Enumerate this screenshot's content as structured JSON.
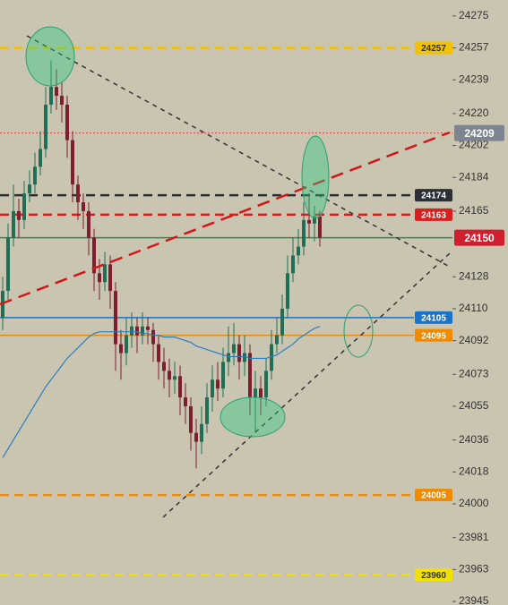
{
  "chart_data": {
    "type": "candlestick",
    "ylim": [
      23943,
      24284
    ],
    "yticks": [
      24275,
      24257,
      24239,
      24220,
      24202,
      24184,
      24165,
      24128,
      24110,
      24092,
      24073,
      24055,
      24036,
      24018,
      24000,
      23981,
      23963,
      23945
    ],
    "up_color": "#1f6e55",
    "down_color": "#7d1f2e",
    "open": [
      24105,
      24120,
      24150,
      24165,
      24160,
      24175,
      24180,
      24190,
      24200,
      24225,
      24235,
      24230,
      24225,
      24205,
      24180,
      24170,
      24165,
      24150,
      24130,
      24125,
      24135,
      24120,
      24090,
      24085,
      24095,
      24100,
      24095,
      24100,
      24098,
      24090,
      24080,
      24075,
      24070,
      24072,
      24060,
      24055,
      24040,
      24035,
      24045,
      24060,
      24070,
      24065,
      24080,
      24085,
      24090,
      24080,
      24085,
      24060,
      24065,
      24060,
      24075,
      24090,
      24095,
      24110,
      24130,
      24140,
      24145,
      24160,
      24158,
      24162
    ],
    "high": [
      24128,
      24158,
      24180,
      24172,
      24182,
      24188,
      24198,
      24210,
      24235,
      24250,
      24245,
      24238,
      24230,
      24210,
      24185,
      24175,
      24170,
      24155,
      24138,
      24142,
      24140,
      24125,
      24098,
      24105,
      24108,
      24105,
      24108,
      24105,
      24102,
      24095,
      24088,
      24082,
      24080,
      24078,
      24068,
      24060,
      24048,
      24055,
      24068,
      24078,
      24080,
      24088,
      24100,
      24102,
      24095,
      24095,
      24090,
      24075,
      24072,
      24082,
      24098,
      24105,
      24118,
      24140,
      24150,
      24155,
      24170,
      24175,
      24168,
      24165
    ],
    "low": [
      24098,
      24115,
      24145,
      24150,
      24155,
      24170,
      24175,
      24185,
      24195,
      24220,
      24222,
      24215,
      24195,
      24170,
      24160,
      24155,
      24140,
      24120,
      24115,
      24120,
      24110,
      24075,
      24070,
      24078,
      24088,
      24085,
      24090,
      24090,
      24080,
      24070,
      24065,
      24060,
      24062,
      24050,
      24045,
      24030,
      24020,
      24028,
      24040,
      24052,
      24058,
      24060,
      24072,
      24078,
      24070,
      24072,
      24050,
      24040,
      24050,
      24055,
      24070,
      24085,
      24090,
      24105,
      24125,
      24135,
      24140,
      24150,
      24148,
      24145
    ],
    "close": [
      24120,
      24150,
      24165,
      24160,
      24175,
      24180,
      24190,
      24200,
      24225,
      24235,
      24230,
      24225,
      24205,
      24180,
      24170,
      24165,
      24150,
      24130,
      24125,
      24135,
      24120,
      24090,
      24085,
      24095,
      24100,
      24095,
      24100,
      24098,
      24090,
      24080,
      24075,
      24070,
      24072,
      24060,
      24055,
      24040,
      24035,
      24045,
      24060,
      24070,
      24065,
      24080,
      24085,
      24090,
      24080,
      24085,
      24060,
      24065,
      24060,
      24075,
      24090,
      24095,
      24110,
      24130,
      24140,
      24145,
      24160,
      24158,
      24162,
      24150
    ],
    "ma": {
      "color": "#2a7fc1",
      "values": [
        24026,
        24031,
        24036,
        24041,
        24046,
        24051,
        24056,
        24061,
        24066,
        24070,
        24074,
        24078,
        24082,
        24085,
        24088,
        24091,
        24094,
        24096,
        24097,
        24097,
        24097,
        24097,
        24097,
        24097,
        24097,
        24097,
        24096,
        24096,
        24095,
        24095,
        24094,
        24094,
        24094,
        24093,
        24092,
        24091,
        24089,
        24088,
        24087,
        24086,
        24085,
        24084,
        24083,
        24083,
        24083,
        24083,
        24082,
        24082,
        24082,
        24082,
        24083,
        24084,
        24086,
        24088,
        24090,
        24093,
        24095,
        24097,
        24099,
        24100
      ]
    },
    "levels": [
      {
        "value": 24257,
        "color": "#f2c200",
        "style": "dashed",
        "label_bg": "#f2c200",
        "label_fg": "#333333",
        "label_pos": "inside"
      },
      {
        "value": 24209,
        "color": "#d84040",
        "style": "dotted",
        "label_bg": "#7f8590",
        "label_fg": "#ffffff",
        "label_pos": "axis"
      },
      {
        "value": 24174,
        "color": "#2b2f36",
        "style": "dashed",
        "label_bg": "#2b2f36",
        "label_fg": "#ffffff",
        "label_pos": "inside"
      },
      {
        "value": 24163,
        "color": "#d81e1e",
        "style": "dashed",
        "label_bg": "#d81e1e",
        "label_fg": "#ffffff",
        "label_pos": "inside"
      },
      {
        "value": 24150,
        "color": "#2f8a4a",
        "style": "solid",
        "label_bg": "#d01f2f",
        "label_fg": "#ffffff",
        "label_pos": "axis"
      },
      {
        "value": 24105,
        "color": "#1a73c8",
        "style": "solid",
        "label_bg": "#1a73c8",
        "label_fg": "#ffffff",
        "label_pos": "inside"
      },
      {
        "value": 24095,
        "color": "#f08a00",
        "style": "solid",
        "label_bg": "#f08a00",
        "label_fg": "#ffffff",
        "label_pos": "inside"
      },
      {
        "value": 24005,
        "color": "#f08a00",
        "style": "dashed",
        "label_bg": "#f08a00",
        "label_fg": "#ffffff",
        "label_pos": "inside"
      },
      {
        "value": 23960,
        "color": "#f2e000",
        "style": "dashed",
        "label_bg": "#f2e000",
        "label_fg": "#333333",
        "label_pos": "inside"
      }
    ]
  }
}
